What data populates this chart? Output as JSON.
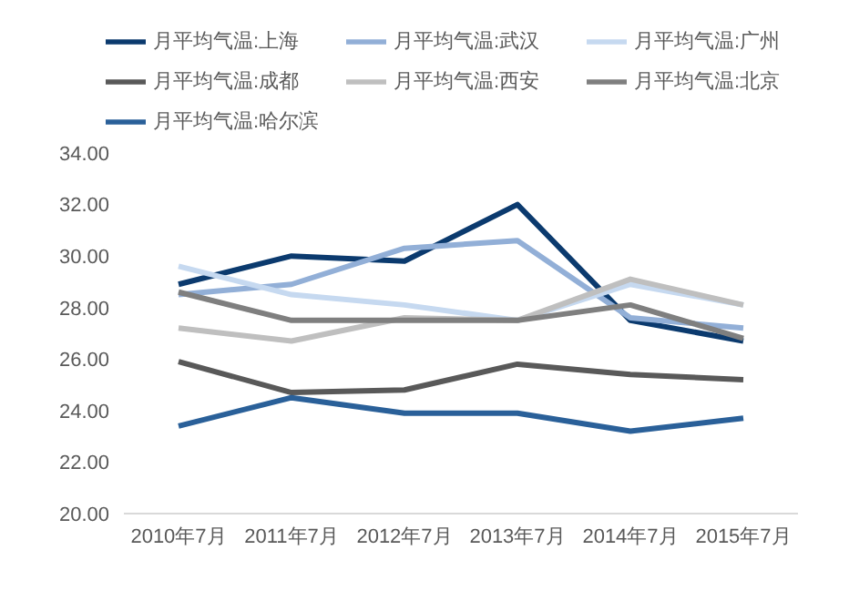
{
  "chart_data": {
    "type": "line",
    "categories": [
      "2010年7月",
      "2011年7月",
      "2012年7月",
      "2013年7月",
      "2014年7月",
      "2015年7月"
    ],
    "ylim": [
      20,
      34
    ],
    "yticks": [
      {
        "value": 20,
        "label": "20.00"
      },
      {
        "value": 22,
        "label": "22.00"
      },
      {
        "value": 24,
        "label": "24.00"
      },
      {
        "value": 26,
        "label": "26.00"
      },
      {
        "value": 28,
        "label": "28.00"
      },
      {
        "value": 30,
        "label": "30.00"
      },
      {
        "value": 32,
        "label": "32.00"
      },
      {
        "value": 34,
        "label": "34.00"
      }
    ],
    "grid": false,
    "legend": "top",
    "marker": "none",
    "line_style": "solid",
    "series": [
      {
        "name": "月平均气温:上海",
        "color": "#0b3a6e",
        "values": [
          28.9,
          30.0,
          29.8,
          32.0,
          27.5,
          26.7
        ]
      },
      {
        "name": "月平均气温:武汉",
        "color": "#92afd7",
        "values": [
          28.5,
          28.9,
          30.3,
          30.6,
          27.6,
          27.2
        ]
      },
      {
        "name": "月平均气温:广州",
        "color": "#c6d9f0",
        "values": [
          29.6,
          28.5,
          28.1,
          27.5,
          28.9,
          28.1
        ]
      },
      {
        "name": "月平均气温:成都",
        "color": "#595959",
        "values": [
          25.9,
          24.7,
          24.8,
          25.8,
          25.4,
          25.2
        ]
      },
      {
        "name": "月平均气温:西安",
        "color": "#bfbfbf",
        "values": [
          27.2,
          26.7,
          27.6,
          27.5,
          29.1,
          28.1
        ]
      },
      {
        "name": "月平均气温:北京",
        "color": "#7f7f7f",
        "values": [
          28.6,
          27.5,
          27.5,
          27.5,
          28.1,
          26.8
        ]
      },
      {
        "name": "月平均气温:哈尔滨",
        "color": "#2a6099",
        "values": [
          23.4,
          24.5,
          23.9,
          23.9,
          23.2,
          23.7
        ]
      }
    ]
  }
}
